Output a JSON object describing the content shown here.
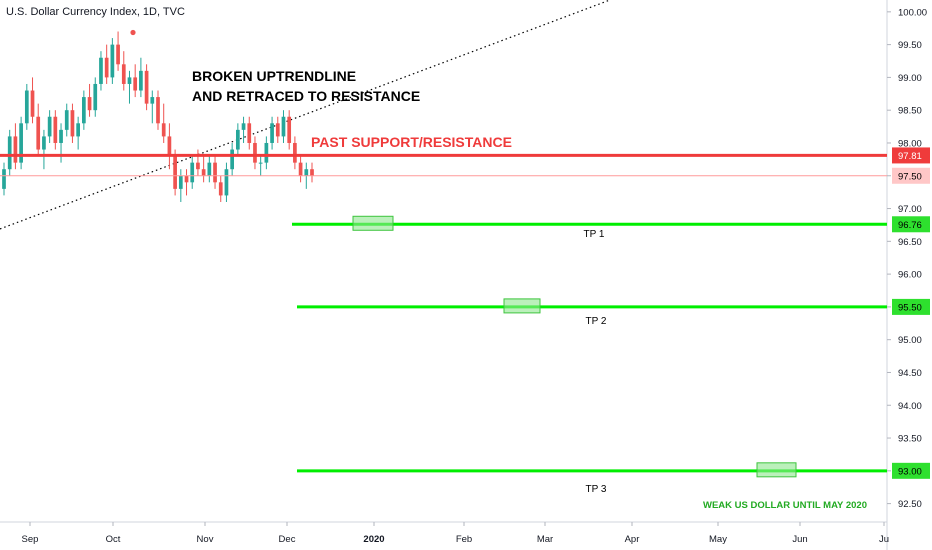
{
  "chart_data": {
    "type": "candlestick",
    "title": "U.S. Dollar Currency Index, 1D, TVC",
    "y_axis": {
      "ylim": [
        92.25,
        100.15
      ],
      "ticks": [
        "100.00",
        "99.50",
        "99.00",
        "98.50",
        "98.00",
        "97.50",
        "97.00",
        "96.50",
        "96.00",
        "95.50",
        "95.00",
        "94.50",
        "94.00",
        "93.50",
        "93.00",
        "92.50"
      ]
    },
    "x_axis": {
      "ticks": [
        {
          "label": "Sep",
          "bold": false
        },
        {
          "label": "Oct",
          "bold": false
        },
        {
          "label": "Nov",
          "bold": false
        },
        {
          "label": "Dec",
          "bold": false
        },
        {
          "label": "2020",
          "bold": true
        },
        {
          "label": "Feb",
          "bold": false
        },
        {
          "label": "Mar",
          "bold": false
        },
        {
          "label": "Apr",
          "bold": false
        },
        {
          "label": "May",
          "bold": false
        },
        {
          "label": "Jun",
          "bold": false
        },
        {
          "label": "Ju",
          "bold": false
        }
      ]
    },
    "levels": [
      {
        "name": "PAST SUPPORT/RESISTANCE",
        "value": 97.81,
        "tag": "97.81",
        "color": "#ef3b3b"
      },
      {
        "name": "last-price",
        "value": 97.5,
        "tag": "97.50",
        "color": "#ff9a9a"
      },
      {
        "name": "TP 1",
        "value": 96.76,
        "tag": "96.76",
        "color": "#00ee00"
      },
      {
        "name": "TP 2",
        "value": 95.5,
        "tag": "95.50",
        "color": "#00ee00"
      },
      {
        "name": "TP 3",
        "value": 93.0,
        "tag": "93.00",
        "color": "#00ee00"
      }
    ],
    "annotations": {
      "trendline": "BROKEN UPTRENDLINE",
      "retrace": "AND RETRACED TO RESISTANCE",
      "support_resistance": "PAST SUPPORT/RESISTANCE",
      "tp1": "TP 1",
      "tp2": "TP 2",
      "tp3": "TP 3",
      "note": "WEAK US DOLLAR UNTIL MAY 2020"
    },
    "candles": [
      [
        97.3,
        97.7,
        97.2,
        97.6
      ],
      [
        97.6,
        98.2,
        97.5,
        98.1
      ],
      [
        98.1,
        98.3,
        97.6,
        97.7
      ],
      [
        97.7,
        98.4,
        97.6,
        98.3
      ],
      [
        98.3,
        98.9,
        98.2,
        98.8
      ],
      [
        98.8,
        99.0,
        98.3,
        98.4
      ],
      [
        98.4,
        98.6,
        97.8,
        97.9
      ],
      [
        97.9,
        98.2,
        97.6,
        98.1
      ],
      [
        98.1,
        98.5,
        98.0,
        98.4
      ],
      [
        98.4,
        98.5,
        97.9,
        98.0
      ],
      [
        98.0,
        98.3,
        97.7,
        98.2
      ],
      [
        98.2,
        98.6,
        98.1,
        98.5
      ],
      [
        98.5,
        98.6,
        98.0,
        98.1
      ],
      [
        98.1,
        98.4,
        97.9,
        98.3
      ],
      [
        98.3,
        98.8,
        98.2,
        98.7
      ],
      [
        98.7,
        98.9,
        98.4,
        98.5
      ],
      [
        98.5,
        99.0,
        98.4,
        98.9
      ],
      [
        98.9,
        99.4,
        98.8,
        99.3
      ],
      [
        99.3,
        99.5,
        98.9,
        99.0
      ],
      [
        99.0,
        99.6,
        98.9,
        99.5
      ],
      [
        99.5,
        99.7,
        99.1,
        99.2
      ],
      [
        99.2,
        99.4,
        98.8,
        98.9
      ],
      [
        98.9,
        99.1,
        98.6,
        99.0
      ],
      [
        99.0,
        99.2,
        98.7,
        98.8
      ],
      [
        98.8,
        99.3,
        98.7,
        99.1
      ],
      [
        99.1,
        99.2,
        98.5,
        98.6
      ],
      [
        98.6,
        98.8,
        98.3,
        98.7
      ],
      [
        98.7,
        98.8,
        98.2,
        98.3
      ],
      [
        98.3,
        98.6,
        98.0,
        98.1
      ],
      [
        98.1,
        98.3,
        97.6,
        97.8
      ],
      [
        97.8,
        97.9,
        97.2,
        97.3
      ],
      [
        97.3,
        97.6,
        97.1,
        97.5
      ],
      [
        97.5,
        97.6,
        97.2,
        97.4
      ],
      [
        97.4,
        97.8,
        97.3,
        97.7
      ],
      [
        97.7,
        97.9,
        97.5,
        97.6
      ],
      [
        97.6,
        97.8,
        97.4,
        97.5
      ],
      [
        97.5,
        97.8,
        97.4,
        97.7
      ],
      [
        97.7,
        97.8,
        97.3,
        97.4
      ],
      [
        97.4,
        97.5,
        97.1,
        97.2
      ],
      [
        97.2,
        97.7,
        97.1,
        97.6
      ],
      [
        97.6,
        98.0,
        97.5,
        97.9
      ],
      [
        97.9,
        98.3,
        97.8,
        98.2
      ],
      [
        98.2,
        98.4,
        98.0,
        98.3
      ],
      [
        98.3,
        98.4,
        97.9,
        98.0
      ],
      [
        98.0,
        98.1,
        97.6,
        97.7
      ],
      [
        97.7,
        97.8,
        97.5,
        97.7
      ],
      [
        97.7,
        98.1,
        97.6,
        98.0
      ],
      [
        98.0,
        98.4,
        97.9,
        98.3
      ],
      [
        98.3,
        98.4,
        98.0,
        98.1
      ],
      [
        98.1,
        98.5,
        98.0,
        98.4
      ],
      [
        98.4,
        98.5,
        97.9,
        98.0
      ],
      [
        98.0,
        98.1,
        97.6,
        97.7
      ],
      [
        97.7,
        97.8,
        97.4,
        97.5
      ],
      [
        97.5,
        97.7,
        97.3,
        97.6
      ],
      [
        97.6,
        97.7,
        97.4,
        97.5
      ]
    ]
  }
}
